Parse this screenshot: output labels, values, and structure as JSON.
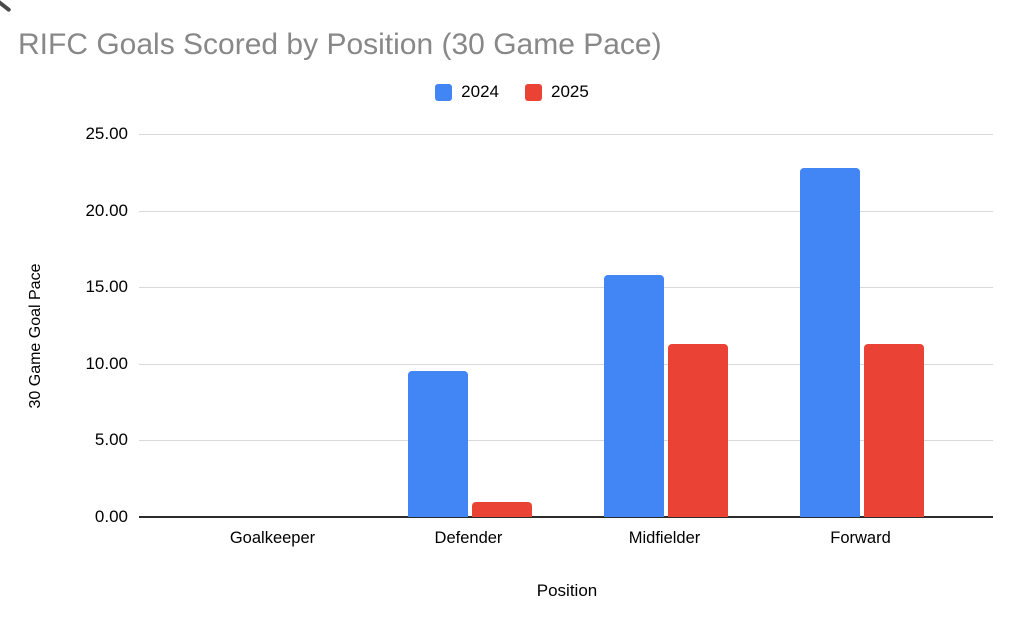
{
  "title": "RIFC Goals Scored by Position (30 Game Pace)",
  "colors": {
    "series_2024": "#4285F4",
    "series_2025": "#EA4335",
    "title_text": "#888888",
    "gridline": "#d9d9d9",
    "axis_line": "#2b2b2b",
    "background": "#ffffff"
  },
  "chart_data": {
    "type": "bar",
    "title": "RIFC Goals Scored by Position (30 Game Pace)",
    "categories": [
      "Goalkeeper",
      "Defender",
      "Midfielder",
      "Forward"
    ],
    "series": [
      {
        "name": "2024",
        "color": "#4285F4",
        "values": [
          0,
          9.5,
          15.8,
          22.8
        ]
      },
      {
        "name": "2025",
        "color": "#EA4335",
        "values": [
          0,
          1.0,
          11.3,
          11.3
        ]
      }
    ],
    "xlabel": "Position",
    "ylabel": "30 Game Goal Pace",
    "ylim": [
      0,
      25
    ],
    "yticks": [
      {
        "value": 0,
        "label": "0.00"
      },
      {
        "value": 5,
        "label": "5.00"
      },
      {
        "value": 10,
        "label": "10.00"
      },
      {
        "value": 15,
        "label": "15.00"
      },
      {
        "value": 20,
        "label": "20.00"
      },
      {
        "value": 25,
        "label": "25.00"
      }
    ],
    "grid": true,
    "legend_position": "top"
  }
}
